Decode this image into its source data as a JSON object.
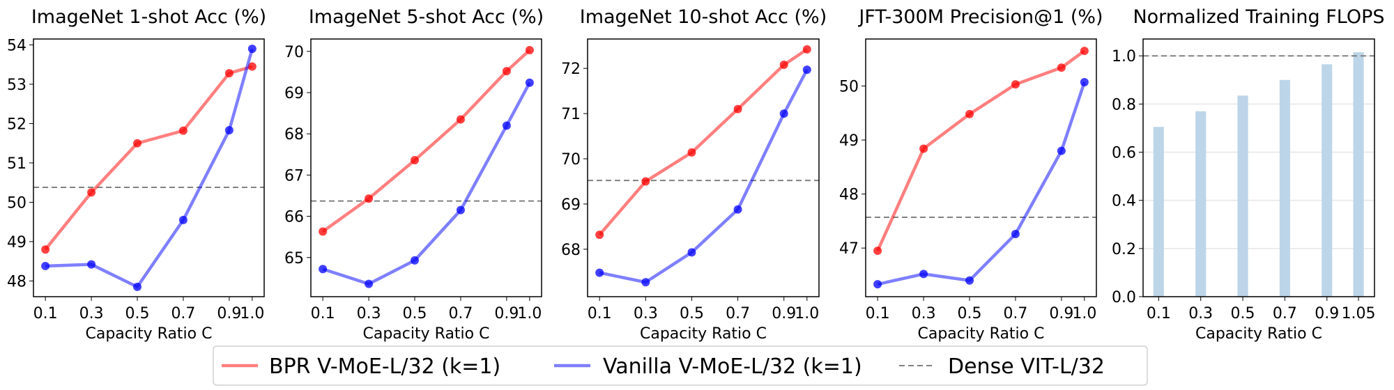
{
  "colors": {
    "bpr": "#ff0000",
    "vanilla": "#0000ff",
    "dense": "#808080",
    "bar": "#bcd5e8"
  },
  "legend": {
    "placement": "bottom-center",
    "items": [
      {
        "label": "BPR V-MoE-L/32 (k=1)",
        "style": "solid",
        "color": "#ff0000"
      },
      {
        "label": "Vanilla V-MoE-L/32 (k=1)",
        "style": "solid",
        "color": "#0000ff"
      },
      {
        "label": "Dense VIT-L/32",
        "style": "dashed",
        "color": "#808080"
      }
    ]
  },
  "chart_data": [
    {
      "type": "line",
      "title": "ImageNet 1-shot Acc (%)",
      "xlabel": "Capacity Ratio C",
      "x": [
        0.1,
        0.3,
        0.5,
        0.7,
        0.9,
        1.0
      ],
      "xticks": [
        "0.1",
        "0.3",
        "0.5",
        "0.7",
        "0.9",
        "1.0"
      ],
      "yticks": [
        48,
        49,
        50,
        51,
        52,
        53,
        54
      ],
      "ylim": [
        47.6,
        54.15
      ],
      "xlim": [
        0.048,
        1.052
      ],
      "series": [
        {
          "name": "BPR V-MoE-L/32 (k=1)",
          "values": [
            48.8,
            50.25,
            51.5,
            51.82,
            53.28,
            53.45
          ]
        },
        {
          "name": "Vanilla V-MoE-L/32 (k=1)",
          "values": [
            48.38,
            48.42,
            47.85,
            49.55,
            51.83,
            53.9
          ]
        }
      ],
      "reference": {
        "name": "Dense VIT-L/32",
        "value": 50.38
      }
    },
    {
      "type": "line",
      "title": "ImageNet 5-shot Acc (%)",
      "xlabel": "Capacity Ratio C",
      "x": [
        0.1,
        0.3,
        0.5,
        0.7,
        0.9,
        1.0
      ],
      "xticks": [
        "0.1",
        "0.3",
        "0.5",
        "0.7",
        "0.9",
        "1.0"
      ],
      "yticks": [
        65,
        66,
        67,
        68,
        69,
        70
      ],
      "ylim": [
        64.05,
        70.3
      ],
      "xlim": [
        0.048,
        1.052
      ],
      "series": [
        {
          "name": "BPR V-MoE-L/32 (k=1)",
          "values": [
            65.63,
            66.43,
            67.36,
            68.35,
            69.52,
            70.03
          ]
        },
        {
          "name": "Vanilla V-MoE-L/32 (k=1)",
          "values": [
            64.72,
            64.36,
            64.93,
            66.15,
            68.2,
            69.24
          ]
        }
      ],
      "reference": {
        "name": "Dense VIT-L/32",
        "value": 66.37
      }
    },
    {
      "type": "line",
      "title": "ImageNet 10-shot Acc (%)",
      "xlabel": "Capacity Ratio C",
      "x": [
        0.1,
        0.3,
        0.5,
        0.7,
        0.9,
        1.0
      ],
      "xticks": [
        "0.1",
        "0.3",
        "0.5",
        "0.7",
        "0.9",
        "1.0"
      ],
      "yticks": [
        68,
        69,
        70,
        71,
        72
      ],
      "ylim": [
        66.95,
        72.65
      ],
      "xlim": [
        0.048,
        1.052
      ],
      "series": [
        {
          "name": "BPR V-MoE-L/32 (k=1)",
          "values": [
            68.32,
            69.5,
            70.14,
            71.1,
            72.08,
            72.42
          ]
        },
        {
          "name": "Vanilla V-MoE-L/32 (k=1)",
          "values": [
            67.48,
            67.27,
            67.93,
            68.88,
            71.0,
            71.97
          ]
        }
      ],
      "reference": {
        "name": "Dense VIT-L/32",
        "value": 69.52
      }
    },
    {
      "type": "line",
      "title": "JFT-300M Precision@1 (%)",
      "xlabel": "Capacity Ratio C",
      "x": [
        0.1,
        0.3,
        0.5,
        0.7,
        0.9,
        1.0
      ],
      "xticks": [
        "0.1",
        "0.3",
        "0.5",
        "0.7",
        "0.9",
        "1.0"
      ],
      "yticks": [
        47,
        48,
        49,
        50
      ],
      "ylim": [
        46.1,
        50.87
      ],
      "xlim": [
        0.048,
        1.052
      ],
      "series": [
        {
          "name": "BPR V-MoE-L/32 (k=1)",
          "values": [
            46.95,
            48.84,
            49.48,
            50.03,
            50.34,
            50.65
          ]
        },
        {
          "name": "Vanilla V-MoE-L/32 (k=1)",
          "values": [
            46.33,
            46.52,
            46.4,
            47.26,
            48.8,
            50.07
          ]
        }
      ],
      "reference": {
        "name": "Dense VIT-L/32",
        "value": 47.57
      }
    },
    {
      "type": "bar",
      "title": "Normalized Training FLOPS",
      "xlabel": "Capacity Ratio C",
      "x": [
        0.1,
        0.3,
        0.5,
        0.7,
        0.9,
        1.05
      ],
      "xticks": [
        "0.1",
        "0.3",
        "0.5",
        "0.7",
        "0.9",
        "1.05"
      ],
      "yticks": [
        "0.0",
        "0.2",
        "0.4",
        "0.6",
        "0.8",
        "1.0"
      ],
      "ylim": [
        0,
        1.07
      ],
      "xlim": [
        0.026,
        1.126
      ],
      "grid": "horizontal",
      "values": [
        0.705,
        0.77,
        0.835,
        0.9,
        0.965,
        1.015
      ],
      "reference": {
        "name": "Dense VIT-L/32",
        "value": 1.0
      }
    }
  ]
}
